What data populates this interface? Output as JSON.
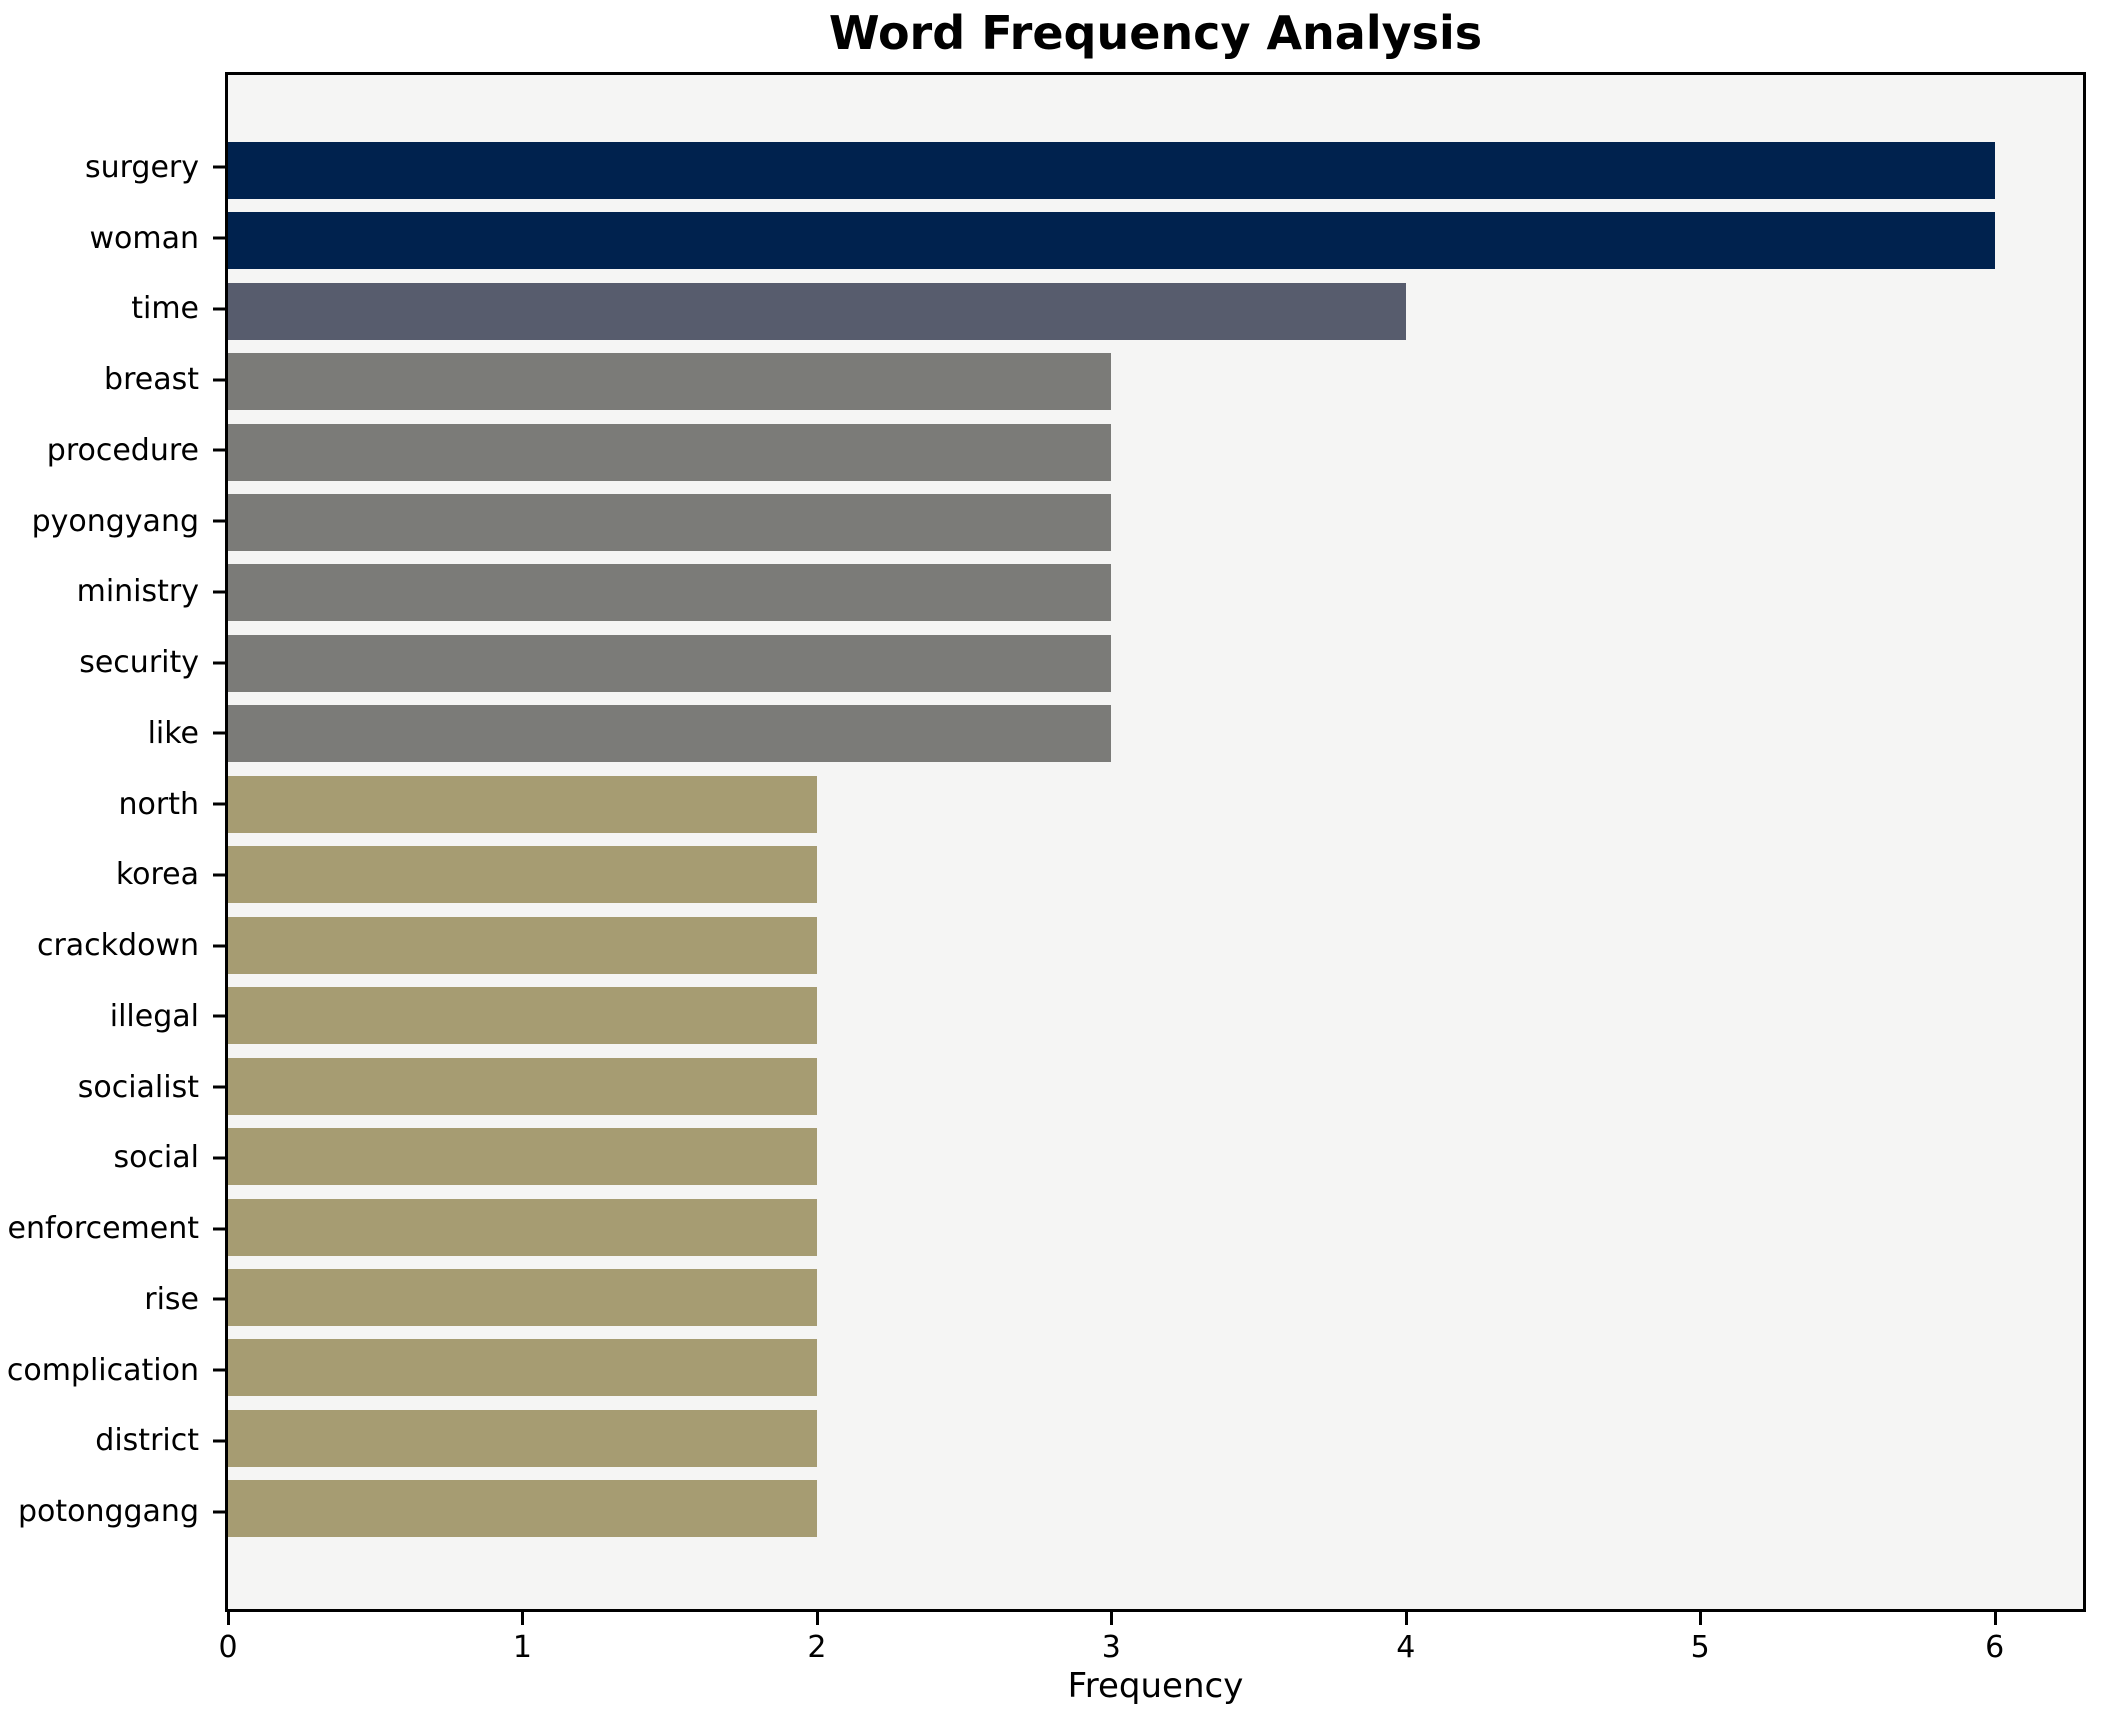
{
  "chart_data": {
    "type": "bar",
    "orientation": "horizontal",
    "title": "Word Frequency Analysis",
    "xlabel": "Frequency",
    "ylabel": "",
    "categories": [
      "surgery",
      "woman",
      "time",
      "breast",
      "procedure",
      "pyongyang",
      "ministry",
      "security",
      "like",
      "north",
      "korea",
      "crackdown",
      "illegal",
      "socialist",
      "social",
      "enforcement",
      "rise",
      "complication",
      "district",
      "potonggang"
    ],
    "values": [
      6,
      6,
      4,
      3,
      3,
      3,
      3,
      3,
      3,
      2,
      2,
      2,
      2,
      2,
      2,
      2,
      2,
      2,
      2,
      2
    ],
    "bar_colors": [
      "#00224e",
      "#00224e",
      "#575c6d",
      "#7b7b78",
      "#7b7b78",
      "#7b7b78",
      "#7b7b78",
      "#7b7b78",
      "#7b7b78",
      "#a69c72",
      "#a69c72",
      "#a69c72",
      "#a69c72",
      "#a69c72",
      "#a69c72",
      "#a69c72",
      "#a69c72",
      "#a69c72",
      "#a69c72",
      "#a69c72"
    ],
    "x_ticks": [
      0,
      1,
      2,
      3,
      4,
      5,
      6
    ],
    "xlim": [
      0,
      6.3
    ],
    "grid": false,
    "legend": null,
    "plot_background": "#f5f5f4",
    "figure_background": "#ffffff",
    "spine_color": "#000000"
  }
}
